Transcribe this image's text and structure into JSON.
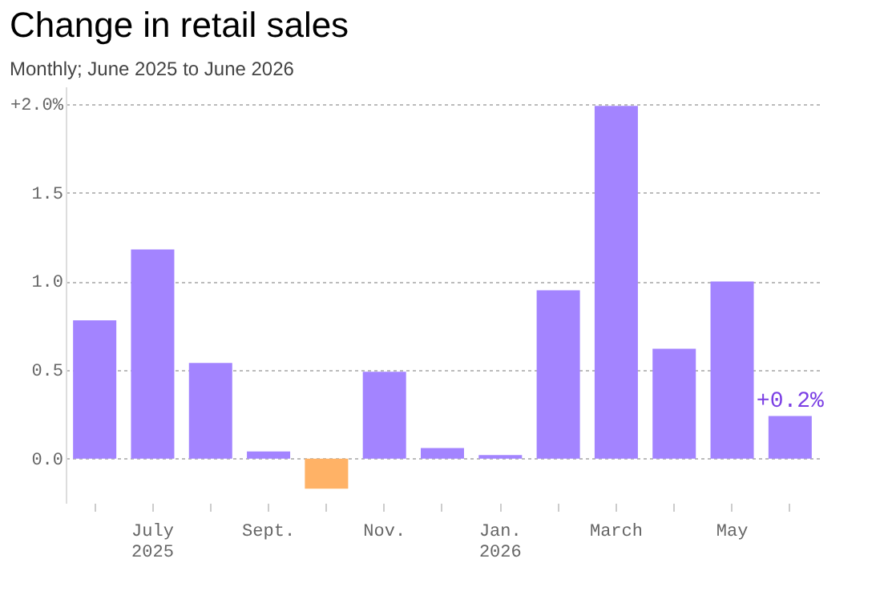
{
  "chart_data": {
    "type": "bar",
    "title": "Change in retail sales",
    "subtitle": "Monthly; June 2025 to June 2026",
    "categories": [
      null,
      "July 2025",
      null,
      "Sept.",
      null,
      "Nov.",
      null,
      "Jan. 2026",
      null,
      "March",
      null,
      "May",
      null
    ],
    "values": [
      0.78,
      1.18,
      0.54,
      0.04,
      -0.17,
      0.49,
      0.06,
      0.02,
      0.95,
      1.99,
      0.62,
      1.0,
      0.24
    ],
    "colors": [
      "#a384ff",
      "#a384ff",
      "#a384ff",
      "#a384ff",
      "#ffb266",
      "#a384ff",
      "#a384ff",
      "#a384ff",
      "#a384ff",
      "#a384ff",
      "#a384ff",
      "#a384ff",
      "#a384ff"
    ],
    "value_labels": [
      null,
      null,
      null,
      null,
      null,
      null,
      null,
      null,
      null,
      null,
      null,
      null,
      "+0.2%"
    ],
    "ylim": [
      -0.25,
      2.1
    ],
    "yticks": [
      {
        "value": 0.0,
        "label": "0.0"
      },
      0.5,
      {
        "value": 1.0,
        "label": "1.0"
      },
      1.5,
      {
        "value": 2.0,
        "label": "+2.0%"
      }
    ],
    "grid": "y"
  }
}
